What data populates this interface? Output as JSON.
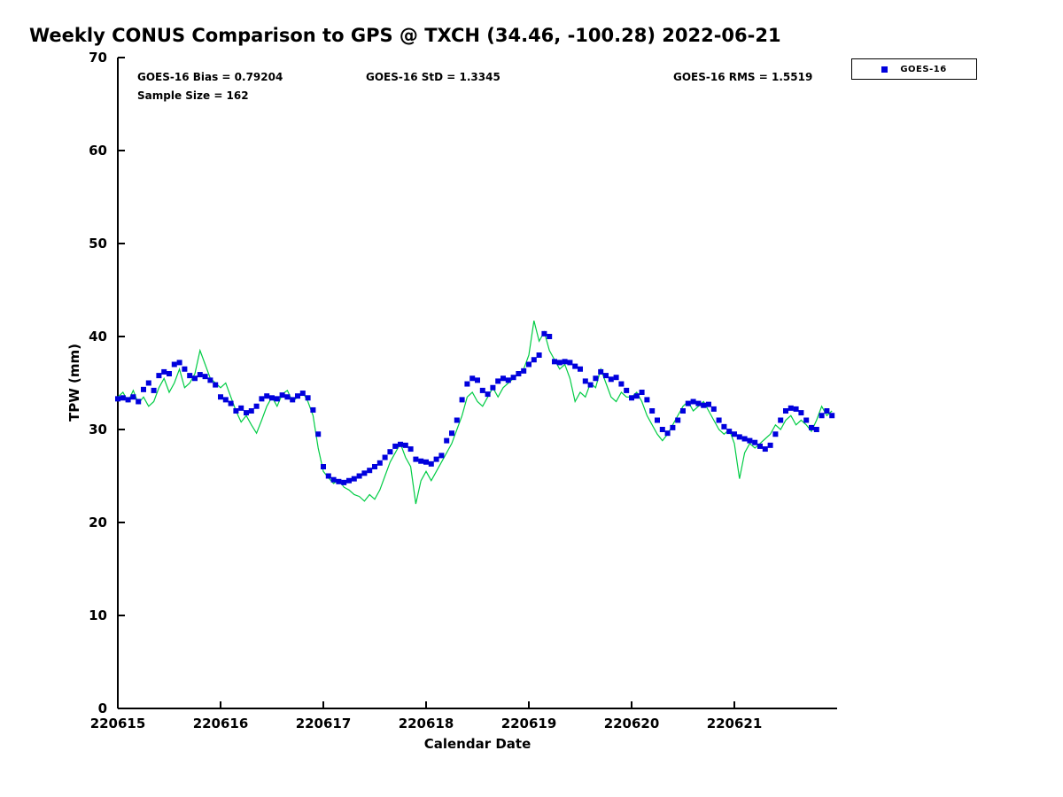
{
  "title": "Weekly CONUS Comparison to GPS @ TXCH (34.46, -100.28) 2022-06-21",
  "annotations": {
    "bias": "GOES-16 Bias = 0.79204",
    "std": "GOES-16 StD = 1.3345",
    "rms": "GOES-16 RMS = 1.5519",
    "sample_size": "Sample Size = 162"
  },
  "legend": {
    "position": "top-right",
    "entries": [
      {
        "label": "GOES-16",
        "marker": "square",
        "color": "#0000dd"
      }
    ]
  },
  "chart_data": {
    "type": "line",
    "title": "Weekly CONUS Comparison to GPS @ TXCH (34.46, -100.28) 2022-06-21",
    "xlabel": "Calendar Date",
    "ylabel": "TPW (mm)",
    "ylim": [
      0,
      70
    ],
    "y_ticks": [
      0,
      10,
      20,
      30,
      40,
      50,
      60,
      70
    ],
    "x_range_days": [
      0,
      7
    ],
    "x_unit": "day offset from 220615",
    "x_ticks": [
      "220615",
      "220616",
      "220617",
      "220618",
      "220619",
      "220620",
      "220621"
    ],
    "x_tick_positions": [
      0,
      1,
      2,
      3,
      4,
      5,
      6
    ],
    "grid": false,
    "x": [
      0,
      0.05,
      0.1,
      0.15,
      0.2,
      0.25,
      0.3,
      0.35,
      0.4,
      0.45,
      0.5,
      0.55,
      0.6,
      0.65,
      0.7,
      0.75,
      0.8,
      0.85,
      0.9,
      0.95,
      1,
      1.05,
      1.1,
      1.15,
      1.2,
      1.25,
      1.3,
      1.35,
      1.4,
      1.45,
      1.5,
      1.55,
      1.6,
      1.65,
      1.7,
      1.75,
      1.8,
      1.85,
      1.9,
      1.95,
      2,
      2.05,
      2.1,
      2.15,
      2.2,
      2.25,
      2.3,
      2.35,
      2.4,
      2.45,
      2.5,
      2.55,
      2.6,
      2.65,
      2.7,
      2.75,
      2.8,
      2.85,
      2.9,
      2.95,
      3,
      3.05,
      3.1,
      3.15,
      3.2,
      3.25,
      3.3,
      3.35,
      3.4,
      3.45,
      3.5,
      3.55,
      3.6,
      3.65,
      3.7,
      3.75,
      3.8,
      3.85,
      3.9,
      3.95,
      4,
      4.05,
      4.1,
      4.15,
      4.2,
      4.25,
      4.3,
      4.35,
      4.4,
      4.45,
      4.5,
      4.55,
      4.6,
      4.65,
      4.7,
      4.75,
      4.8,
      4.85,
      4.9,
      4.95,
      5,
      5.05,
      5.1,
      5.15,
      5.2,
      5.25,
      5.3,
      5.35,
      5.4,
      5.45,
      5.5,
      5.55,
      5.6,
      5.65,
      5.7,
      5.75,
      5.8,
      5.85,
      5.9,
      5.95,
      6,
      6.05,
      6.1,
      6.15,
      6.2,
      6.25,
      6.3,
      6.35,
      6.4,
      6.45,
      6.5,
      6.55,
      6.6,
      6.65,
      6.7,
      6.75,
      6.8,
      6.85,
      6.9,
      6.95
    ],
    "series": [
      {
        "name": "GPS",
        "style": "line",
        "color": "#00cc44",
        "values": [
          33.5,
          34,
          33,
          34.2,
          32.8,
          33.5,
          32.5,
          33,
          34.5,
          35.5,
          34,
          35,
          36.5,
          34.5,
          35,
          36,
          38.5,
          37,
          35.5,
          35,
          34.5,
          35,
          33.5,
          32,
          30.8,
          31.5,
          30.5,
          29.6,
          31,
          32.5,
          33.5,
          32.5,
          33.8,
          34.2,
          33,
          33.5,
          34,
          33,
          31.5,
          28,
          25.5,
          24.8,
          24.2,
          24.6,
          23.8,
          23.5,
          23,
          22.8,
          22.3,
          23,
          22.5,
          23.5,
          25,
          26.5,
          27.5,
          28.5,
          27,
          26,
          22,
          24.5,
          25.5,
          24.5,
          25.5,
          26.5,
          27.5,
          28.5,
          30,
          31.5,
          33.5,
          34,
          33,
          32.5,
          33.5,
          34.5,
          33.5,
          34.5,
          35,
          35.5,
          36,
          36.5,
          38,
          41.7,
          39.5,
          40.5,
          38.5,
          37.5,
          36.5,
          37,
          35.5,
          33,
          34,
          33.5,
          35,
          34.5,
          36.5,
          35,
          33.5,
          33,
          34,
          33.5,
          33.5,
          34,
          33,
          31.5,
          30.5,
          29.5,
          28.8,
          29.5,
          30.5,
          31.5,
          32.5,
          33,
          32,
          32.5,
          33,
          32,
          31,
          30,
          29.5,
          30,
          28.5,
          24.7,
          27.5,
          28.5,
          28,
          28.5,
          29,
          29.5,
          30.5,
          30,
          31,
          31.5,
          30.5,
          31,
          30.5,
          29.8,
          31,
          32.5,
          31.5,
          32
        ]
      },
      {
        "name": "GOES-16",
        "style": "scatter-square",
        "color": "#0000dd",
        "values": [
          33.3,
          33.4,
          33.2,
          33.5,
          33,
          34.3,
          35,
          34.2,
          35.8,
          36.2,
          36,
          37,
          37.2,
          36.5,
          35.8,
          35.5,
          35.9,
          35.7,
          35.3,
          34.8,
          33.5,
          33.2,
          32.8,
          32,
          32.3,
          31.8,
          32,
          32.5,
          33.3,
          33.6,
          33.4,
          33.3,
          33.7,
          33.5,
          33.2,
          33.6,
          33.9,
          33.4,
          32.1,
          29.5,
          26,
          25,
          24.6,
          24.4,
          24.3,
          24.5,
          24.7,
          25,
          25.3,
          25.6,
          26,
          26.4,
          27,
          27.6,
          28.2,
          28.4,
          28.3,
          27.9,
          26.8,
          26.6,
          26.5,
          26.3,
          26.8,
          27.2,
          28.8,
          29.6,
          31,
          33.2,
          34.9,
          35.5,
          35.3,
          34.2,
          33.8,
          34.5,
          35.2,
          35.5,
          35.3,
          35.6,
          36,
          36.3,
          37,
          37.5,
          38,
          40.3,
          40,
          37.3,
          37.2,
          37.3,
          37.2,
          36.8,
          36.5,
          35.2,
          34.8,
          35.5,
          36.2,
          35.8,
          35.4,
          35.6,
          34.9,
          34.2,
          33.4,
          33.6,
          34,
          33.2,
          32,
          31,
          30,
          29.6,
          30.2,
          31,
          32,
          32.8,
          33,
          32.8,
          32.6,
          32.7,
          32.2,
          31,
          30.3,
          29.8,
          29.5,
          29.2,
          29,
          28.8,
          28.6,
          28.2,
          27.9,
          28.3,
          29.5,
          31,
          32,
          32.3,
          32.2,
          31.8,
          31,
          30.2,
          30,
          31.5,
          32,
          31.5
        ]
      }
    ]
  }
}
